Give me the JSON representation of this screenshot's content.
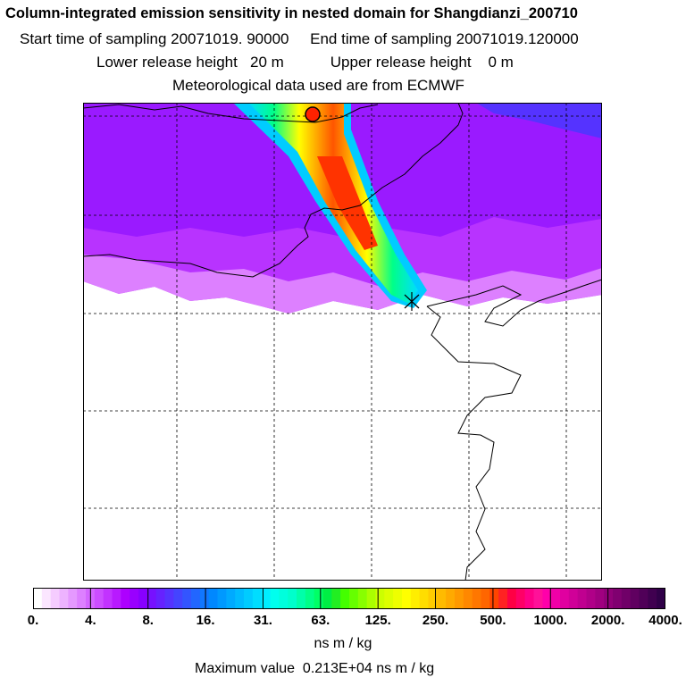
{
  "title": "Column-integrated emission sensitivity in nested domain for Shangdianzi_200710",
  "start_time_label": "Start time of sampling",
  "start_time_value": "20071019. 90000",
  "end_time_label": "End time of sampling",
  "end_time_value": "20071019.120000",
  "lower_height_label": "Lower release height",
  "lower_height_value": "20 m",
  "upper_height_label": "Upper release height",
  "upper_height_value": "0 m",
  "met_data": "Meteorological data used are from ECMWF",
  "colorbar": {
    "ticks": [
      "0.",
      "4.",
      "8.",
      "16.",
      "31.",
      "63.",
      "125.",
      "250.",
      "500.",
      "1000.",
      "2000.",
      "4000."
    ],
    "colors": [
      "#ffffff",
      "#fbe6ff",
      "#f5ccff",
      "#edb3ff",
      "#e599ff",
      "#dd80ff",
      "#d466ff",
      "#cc4dff",
      "#c233ff",
      "#b81aff",
      "#ad00ff",
      "#9900ff",
      "#8800ff",
      "#7711ff",
      "#6622ff",
      "#5533ff",
      "#4444ff",
      "#3355ff",
      "#2266ff",
      "#1177ff",
      "#0088ff",
      "#0099ff",
      "#00aaff",
      "#00bbff",
      "#00ccff",
      "#00ddff",
      "#00eeff",
      "#00ffee",
      "#00ffdd",
      "#00ffcc",
      "#00ffaa",
      "#00ff88",
      "#00ff66",
      "#00ee44",
      "#22ee22",
      "#44ff00",
      "#66ff00",
      "#88ff00",
      "#aaff00",
      "#ccff00",
      "#ddff00",
      "#eeff00",
      "#ffff00",
      "#ffee00",
      "#ffdd00",
      "#ffcc00",
      "#ffbb00",
      "#ffaa00",
      "#ff9900",
      "#ff8800",
      "#ff7700",
      "#ff6600",
      "#ff4400",
      "#ff2222",
      "#ff0044",
      "#ff0066",
      "#ff0088",
      "#ff1199",
      "#ff00aa",
      "#f000a8",
      "#e000a0",
      "#d00098",
      "#c00090",
      "#b00088",
      "#a00080",
      "#900078",
      "#800070",
      "#700068",
      "#600060",
      "#500058",
      "#400050",
      "#300048"
    ]
  },
  "units": "ns m / kg",
  "max_label": "Maximum value",
  "max_value": "0.213E+04",
  "max_units": "ns m / kg"
}
